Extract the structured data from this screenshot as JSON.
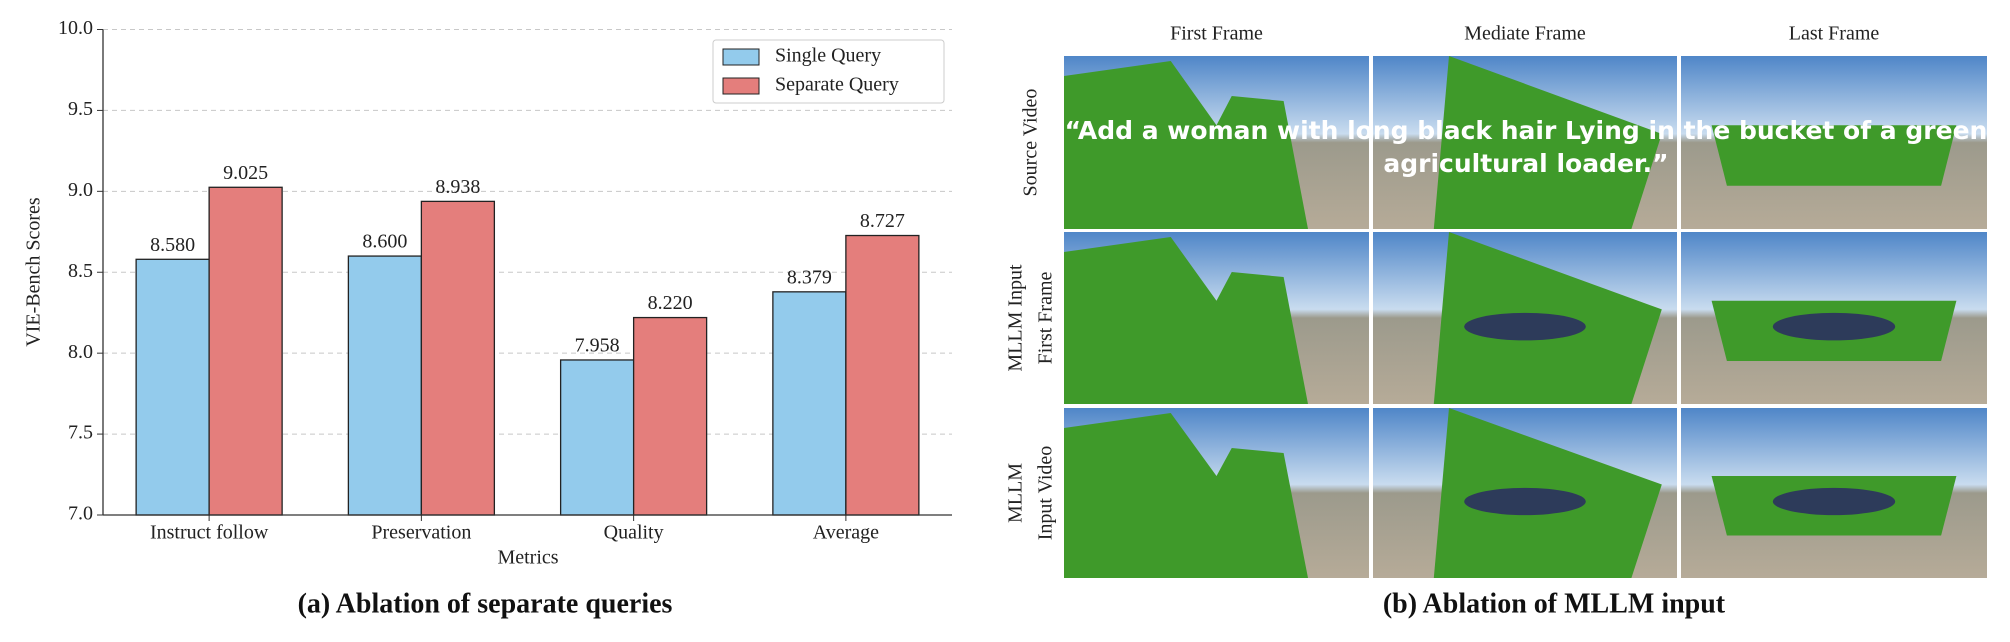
{
  "chart_data": {
    "type": "bar",
    "caption": "(a) Ablation of separate queries",
    "xlabel": "Metrics",
    "ylabel": "VIE-Bench Scores",
    "categories": [
      "Instruct follow",
      "Preservation",
      "Quality",
      "Average"
    ],
    "series": [
      {
        "name": "Single Query",
        "color": "#93cbec",
        "values": [
          8.58,
          8.6,
          7.958,
          8.379
        ],
        "value_labels": [
          "8.580",
          "8.600",
          "7.958",
          "8.379"
        ]
      },
      {
        "name": "Separate Query",
        "color": "#e47e7c",
        "values": [
          9.025,
          8.938,
          8.22,
          8.727
        ],
        "value_labels": [
          "9.025",
          "8.938",
          "8.220",
          "8.727"
        ]
      }
    ],
    "ylim": [
      7.0,
      10.0
    ],
    "yticks": [
      {
        "value": 7.0,
        "label": "7.0"
      },
      7.5,
      {
        "value": 8.0,
        "label": "8.0"
      },
      8.5,
      {
        "value": 9.0,
        "label": "9.0"
      },
      9.5,
      {
        "value": 10.0,
        "label": "10.0"
      }
    ],
    "grid": true,
    "legend": "upper right"
  },
  "figure_b": {
    "caption": "(b) Ablation of MLLM input",
    "columns": [
      "First Frame",
      "Mediate Frame",
      "Last Frame"
    ],
    "rows": [
      [
        "Source Video"
      ],
      [
        "MLLM Input",
        "First Frame"
      ],
      [
        "MLLM",
        "Input Video"
      ]
    ],
    "prompt": [
      "“Add a woman with long black hair Lying in the bucket of a green",
      "agricultural loader.”"
    ]
  }
}
